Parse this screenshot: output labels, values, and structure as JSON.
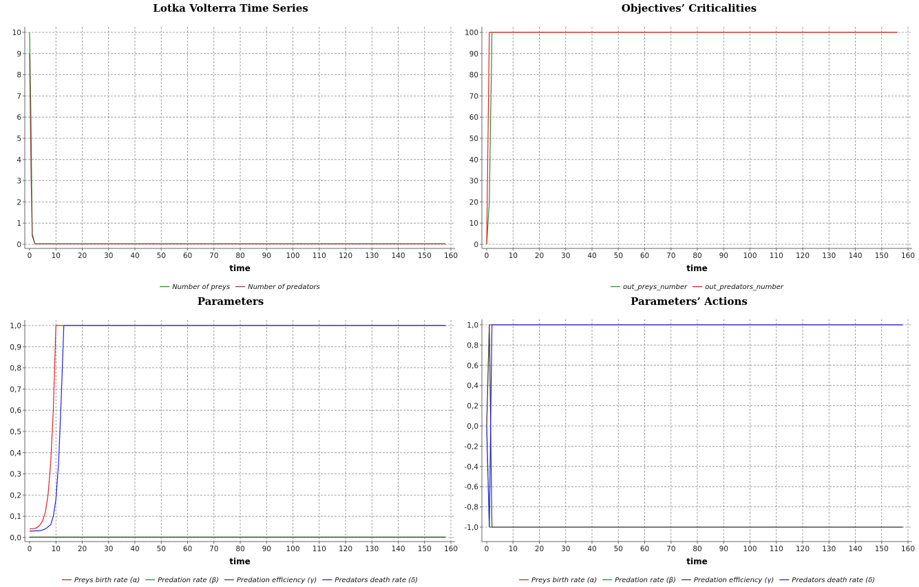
{
  "colors": {
    "green": "#2e8b2e",
    "red": "#e02020",
    "dark": "#404040",
    "blue": "#2020e0",
    "predator_brown": "#8b3a3a"
  },
  "chart_data": [
    {
      "type": "line",
      "title": "Lotka Volterra Time Series",
      "xlabel": "time",
      "ylabel": "",
      "xlim": [
        0,
        160
      ],
      "ylim": [
        0,
        10
      ],
      "xticks": [
        0,
        10,
        20,
        30,
        40,
        50,
        60,
        70,
        80,
        90,
        100,
        110,
        120,
        130,
        140,
        150,
        160
      ],
      "yticks": [
        0,
        1,
        2,
        3,
        4,
        5,
        6,
        7,
        8,
        9,
        10
      ],
      "ytick_labels": [
        "0",
        "1",
        "2",
        "3",
        "4",
        "5",
        "6",
        "7",
        "8",
        "9",
        "10"
      ],
      "grid": true,
      "legend_position": "bottom",
      "series": [
        {
          "name": "Number of preys",
          "color": "#2e8b2e",
          "points": [
            [
              0,
              10
            ],
            [
              0.5,
              6
            ],
            [
              1,
              0.5
            ],
            [
              2,
              0.02
            ],
            [
              158,
              0.02
            ]
          ]
        },
        {
          "name": "Number of predators",
          "color": "#8b3a3a",
          "points": [
            [
              0,
              9
            ],
            [
              0.6,
              3
            ],
            [
              1,
              0.4
            ],
            [
              2,
              0.02
            ],
            [
              158,
              0.02
            ]
          ]
        }
      ]
    },
    {
      "type": "line",
      "title": "Objectives’ Criticalities",
      "xlabel": "time",
      "ylabel": "",
      "xlim": [
        0,
        160
      ],
      "ylim": [
        0,
        100
      ],
      "xticks": [
        0,
        10,
        20,
        30,
        40,
        50,
        60,
        70,
        80,
        90,
        100,
        110,
        120,
        130,
        140,
        150,
        160
      ],
      "yticks": [
        0,
        10,
        20,
        30,
        40,
        50,
        60,
        70,
        80,
        90,
        100
      ],
      "ytick_labels": [
        "0",
        "10",
        "20",
        "30",
        "40",
        "50",
        "60",
        "70",
        "80",
        "90",
        "100"
      ],
      "grid": true,
      "legend_position": "bottom",
      "series": [
        {
          "name": "out_preys_number",
          "color": "#2e8b2e",
          "points": [
            [
              0,
              0
            ],
            [
              1,
              20
            ],
            [
              2,
              100
            ],
            [
              156,
              100
            ]
          ]
        },
        {
          "name": "out_predators_number",
          "color": "#e02020",
          "points": [
            [
              0,
              0
            ],
            [
              1,
              100
            ],
            [
              156,
              100
            ]
          ]
        }
      ]
    },
    {
      "type": "line",
      "title": "Parameters",
      "xlabel": "time",
      "ylabel": "",
      "xlim": [
        0,
        160
      ],
      "ylim": [
        0,
        1
      ],
      "xticks": [
        0,
        10,
        20,
        30,
        40,
        50,
        60,
        70,
        80,
        90,
        100,
        110,
        120,
        130,
        140,
        150,
        160
      ],
      "yticks": [
        0,
        0.1,
        0.2,
        0.3,
        0.4,
        0.5,
        0.6,
        0.7,
        0.8,
        0.9,
        1.0
      ],
      "ytick_labels": [
        "0,0",
        "0,1",
        "0,2",
        "0,3",
        "0,4",
        "0,5",
        "0,6",
        "0,7",
        "0,8",
        "0,9",
        "1,0"
      ],
      "grid": true,
      "legend_position": "bottom",
      "series": [
        {
          "name": "Preys birth rate (α)",
          "color": "#e02020",
          "points": [
            [
              0,
              0.04
            ],
            [
              2,
              0.042
            ],
            [
              3,
              0.048
            ],
            [
              4,
              0.06
            ],
            [
              5,
              0.08
            ],
            [
              6,
              0.12
            ],
            [
              7,
              0.2
            ],
            [
              8,
              0.35
            ],
            [
              9,
              0.6
            ],
            [
              10,
              1.0
            ],
            [
              158,
              1.0
            ]
          ]
        },
        {
          "name": "Predation rate (β)",
          "color": "#2e8b2e",
          "points": [
            [
              0,
              0.002
            ],
            [
              158,
              0.002
            ]
          ]
        },
        {
          "name": "Predation efficiency (γ)",
          "color": "#404040",
          "points": [
            [
              0,
              0.001
            ],
            [
              158,
              0.001
            ]
          ]
        },
        {
          "name": "Predators death rate (δ)",
          "color": "#2020e0",
          "points": [
            [
              0,
              0.03
            ],
            [
              4,
              0.032
            ],
            [
              6,
              0.04
            ],
            [
              8,
              0.06
            ],
            [
              9,
              0.1
            ],
            [
              10,
              0.18
            ],
            [
              11,
              0.35
            ],
            [
              12,
              0.65
            ],
            [
              13,
              1.0
            ],
            [
              158,
              1.0
            ]
          ]
        }
      ]
    },
    {
      "type": "line",
      "title": "Parameters’ Actions",
      "xlabel": "time",
      "ylabel": "",
      "xlim": [
        0,
        160
      ],
      "ylim": [
        -1.1,
        1.1
      ],
      "xticks": [
        0,
        10,
        20,
        30,
        40,
        50,
        60,
        70,
        80,
        90,
        100,
        110,
        120,
        130,
        140,
        150,
        160
      ],
      "yticks": [
        -1.0,
        -0.8,
        -0.6,
        -0.4,
        -0.2,
        0.0,
        0.2,
        0.4,
        0.6,
        0.8,
        1.0
      ],
      "ytick_labels": [
        "-1,0",
        "-0,8",
        "-0,6",
        "-0,4",
        "-0,2",
        "0,0",
        "0,2",
        "0,4",
        "0,6",
        "0,8",
        "1,0"
      ],
      "grid": true,
      "legend_position": "bottom",
      "series": [
        {
          "name": "Preys birth rate (α)",
          "color": "#e02020",
          "points": [
            [
              0,
              0
            ],
            [
              1,
              1
            ],
            [
              158,
              1
            ]
          ]
        },
        {
          "name": "Predation rate (β)",
          "color": "#2e8b2e",
          "points": [
            [
              0,
              0
            ],
            [
              1,
              -1
            ],
            [
              158,
              -1
            ]
          ]
        },
        {
          "name": "Predation efficiency (γ)",
          "color": "#404040",
          "points": [
            [
              0,
              0
            ],
            [
              1,
              1
            ],
            [
              2,
              -1
            ],
            [
              158,
              -1
            ]
          ]
        },
        {
          "name": "Predators death rate (δ)",
          "color": "#2020e0",
          "points": [
            [
              0,
              0
            ],
            [
              1,
              -1
            ],
            [
              2,
              1
            ],
            [
              158,
              1
            ]
          ]
        }
      ]
    }
  ]
}
